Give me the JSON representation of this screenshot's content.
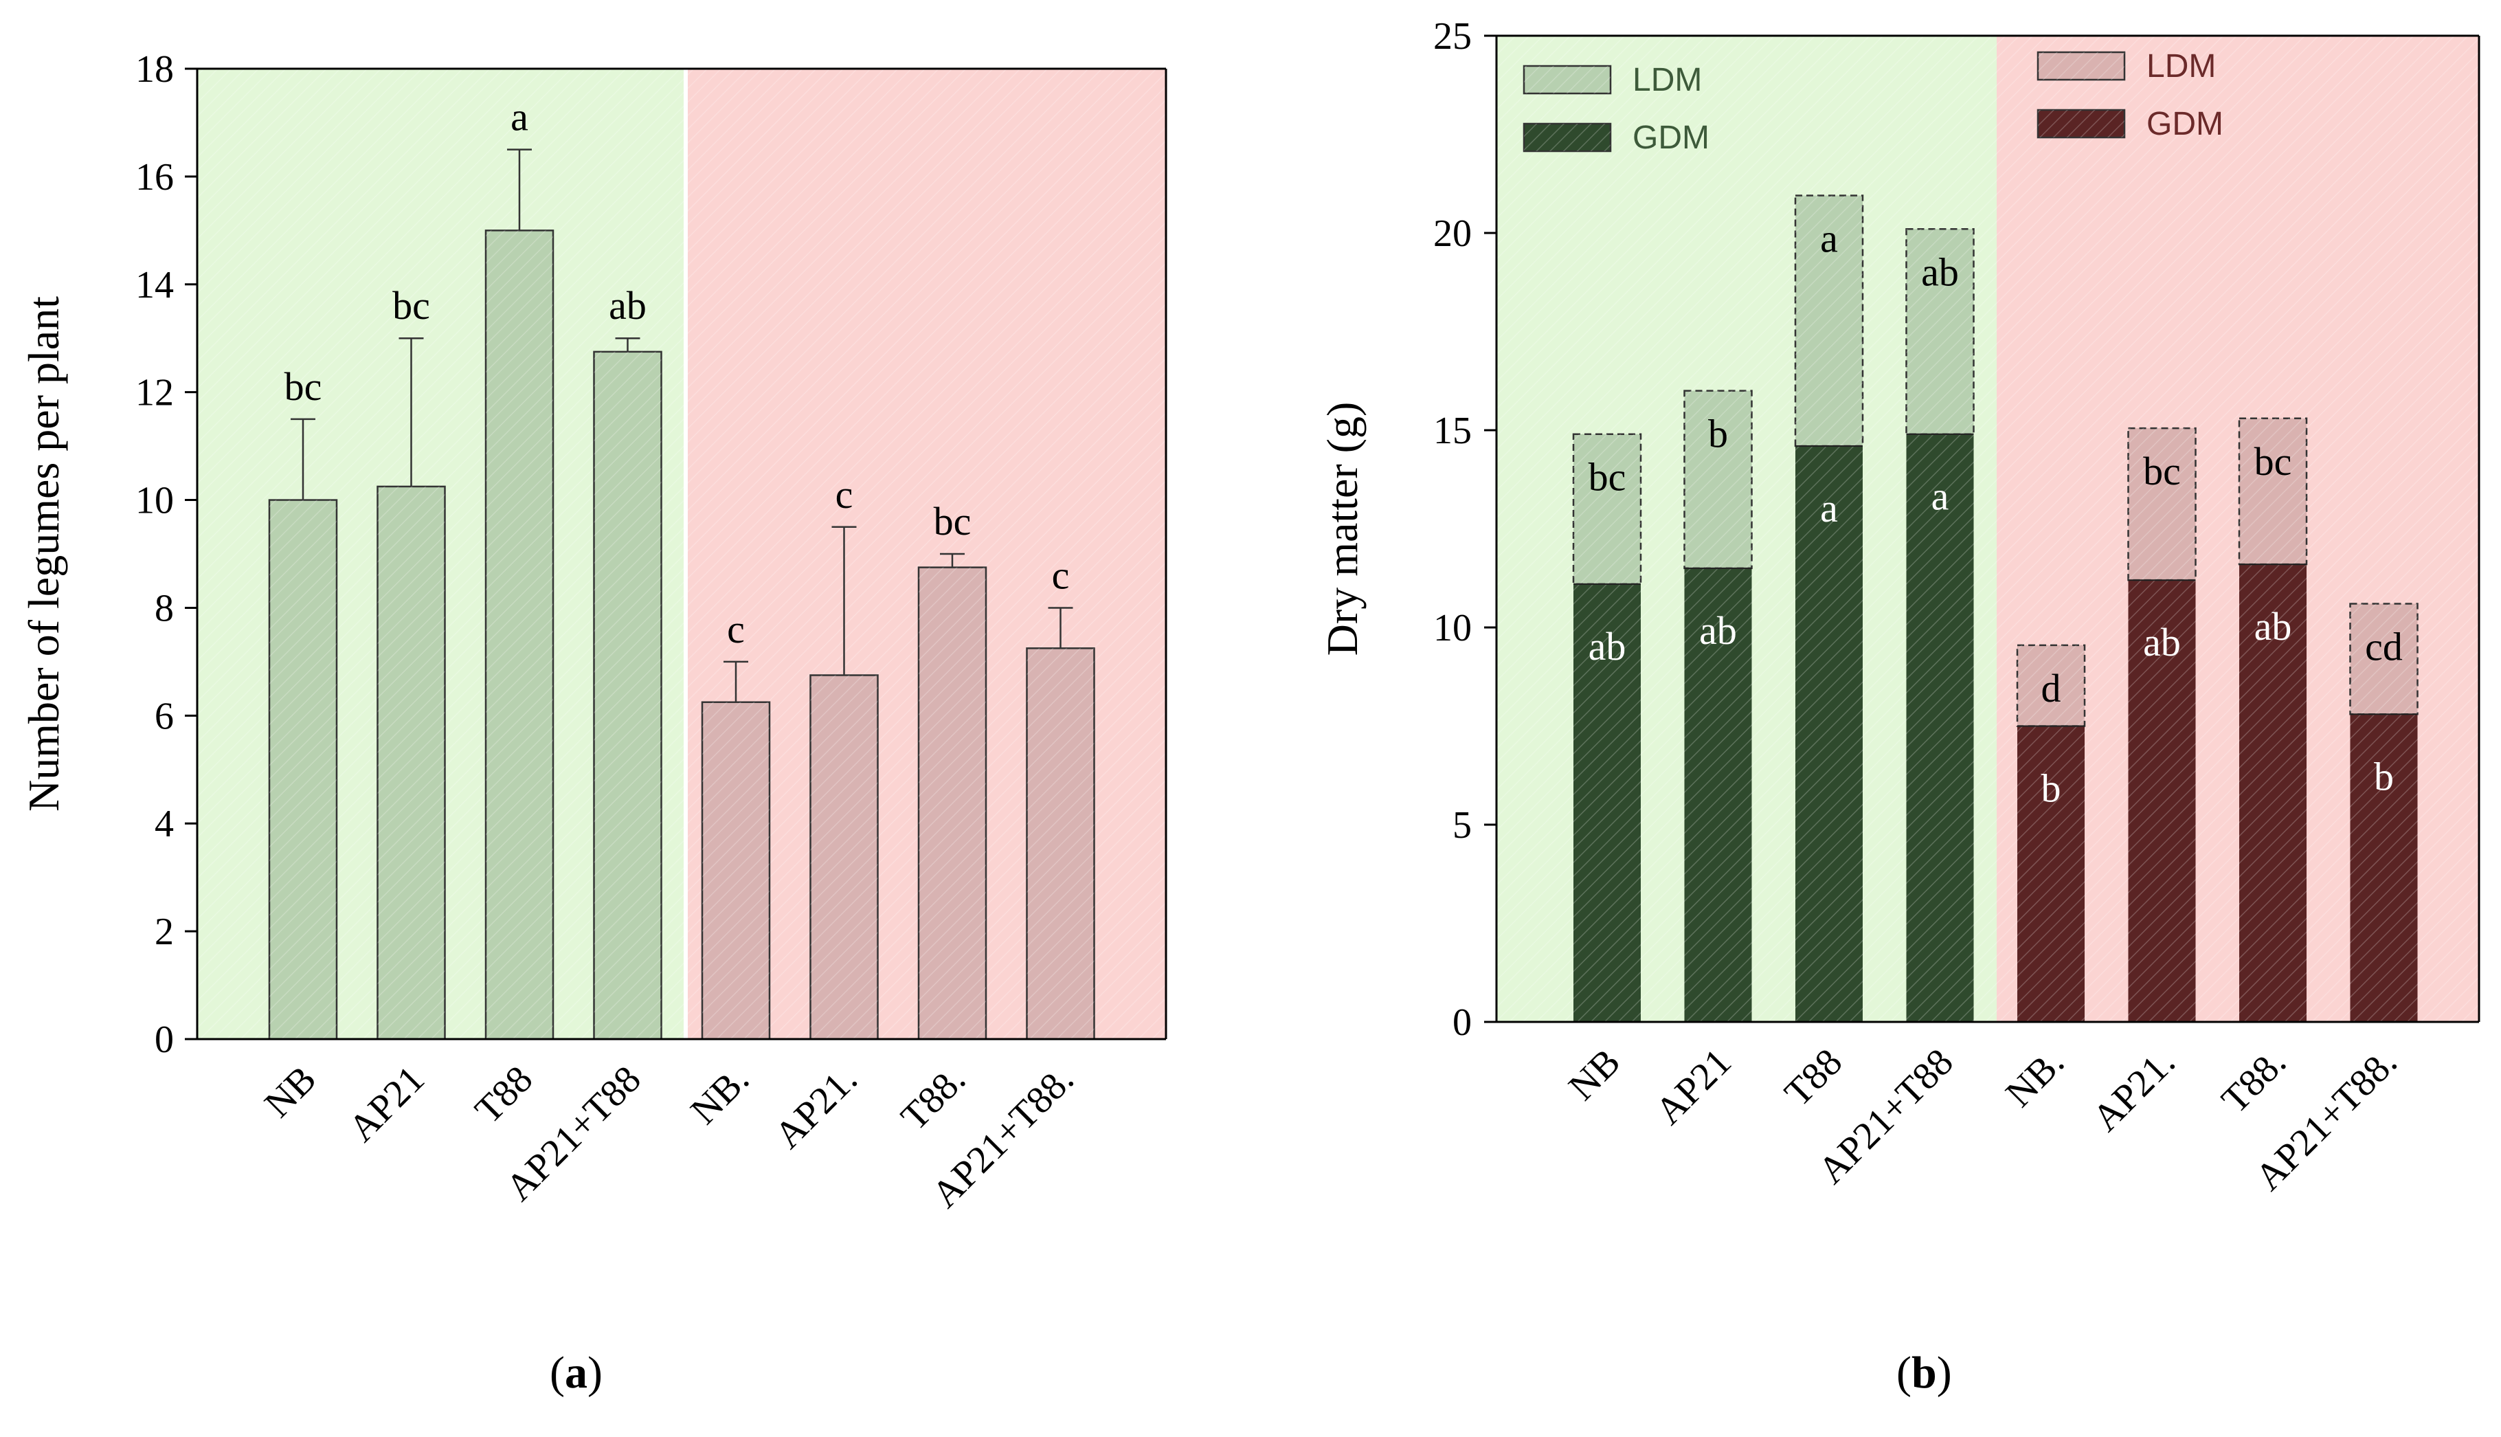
{
  "colors": {
    "green_region": "#e3f7d8",
    "red_region": "#fbd4d2",
    "green_bar": "#b8d1b0",
    "red_bar": "#d8b3b2",
    "gdm_green": "#2f4a2d",
    "gdm_red": "#5a2424",
    "ldm_green": "#b7d0b0",
    "ldm_red": "#d9b2b0",
    "axis": "#000000"
  },
  "captions": {
    "a_letter": "a",
    "b_letter": "b"
  },
  "chart_data": [
    {
      "id": "a",
      "type": "bar",
      "caption": "(a)",
      "ylabel": "Number of legumes per plant",
      "ylim": [
        0,
        18
      ],
      "yticks": [
        0,
        2,
        4,
        6,
        8,
        10,
        12,
        14,
        16,
        18
      ],
      "categories": [
        "NB",
        "AP21",
        "T88",
        "AP21+T88",
        "NB.",
        "AP21.",
        "T88.",
        "AP21+T88."
      ],
      "values": [
        10,
        10.25,
        15,
        12.75,
        6.25,
        6.75,
        8.75,
        7.25
      ],
      "errors": [
        1.5,
        2.75,
        1.5,
        0.25,
        0.75,
        2.75,
        0.25,
        0.75
      ],
      "letters": [
        "bc",
        "bc",
        "a",
        "ab",
        "c",
        "c",
        "bc",
        "c"
      ],
      "groups": [
        "green",
        "green",
        "green",
        "green",
        "red",
        "red",
        "red",
        "red"
      ]
    },
    {
      "id": "b",
      "type": "bar",
      "stacked": true,
      "caption": "(b)",
      "ylabel": "Dry matter (g)",
      "ylim": [
        0,
        25
      ],
      "yticks": [
        0,
        5,
        10,
        15,
        20,
        25
      ],
      "categories": [
        "NB",
        "AP21",
        "T88",
        "AP21+T88",
        "NB.",
        "AP21.",
        "T88.",
        "AP21+T88."
      ],
      "groups": [
        "green",
        "green",
        "green",
        "green",
        "red",
        "red",
        "red",
        "red"
      ],
      "series": [
        {
          "name": "GDM",
          "values": [
            11.1,
            11.5,
            14.6,
            14.9,
            7.5,
            11.2,
            11.6,
            7.8
          ],
          "letters": [
            "ab",
            "ab",
            "a",
            "a",
            "b",
            "ab",
            "ab",
            "b"
          ]
        },
        {
          "name": "LDM",
          "values": [
            3.8,
            4.5,
            6.35,
            5.2,
            2.05,
            3.85,
            3.7,
            2.8
          ],
          "letters": [
            "bc",
            "b",
            "a",
            "ab",
            "d",
            "bc",
            "bc",
            "cd"
          ]
        }
      ],
      "legend": {
        "green": [
          {
            "label": "LDM",
            "series": "LDM"
          },
          {
            "label": "GDM",
            "series": "GDM"
          }
        ],
        "red": [
          {
            "label": "LDM",
            "series": "LDM"
          },
          {
            "label": "GDM",
            "series": "GDM"
          }
        ]
      }
    }
  ]
}
